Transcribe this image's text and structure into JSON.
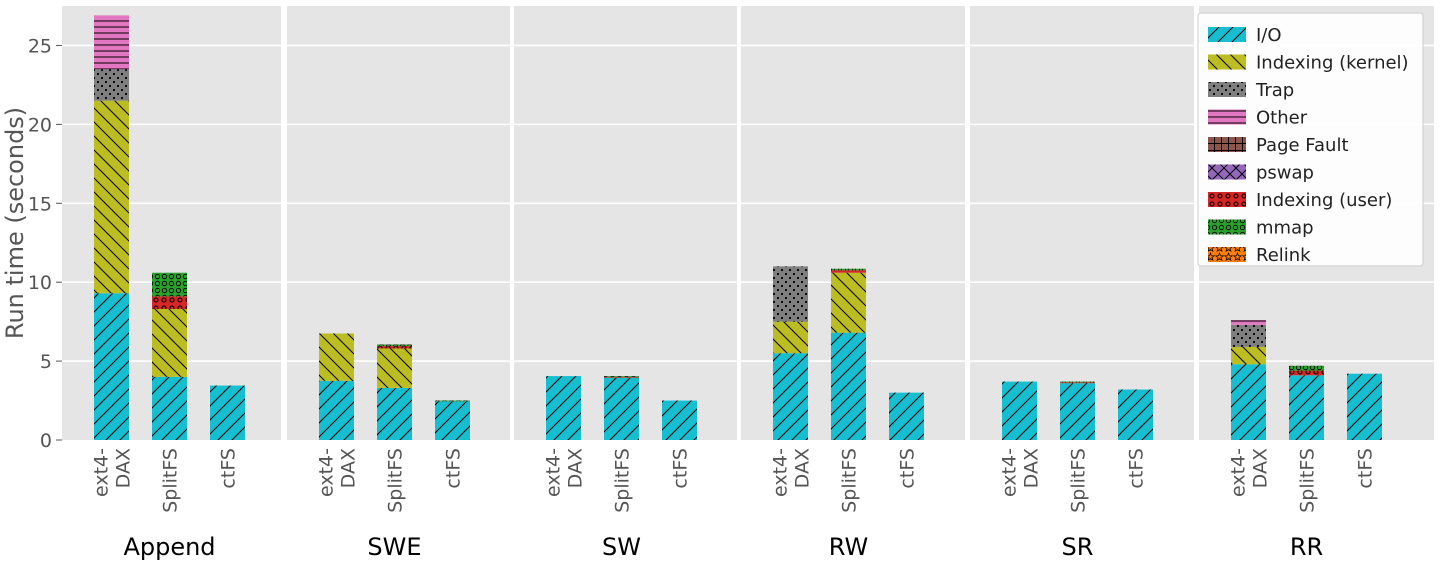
{
  "chart_data": {
    "type": "bar",
    "stacked": true,
    "ylabel": "Run time (seconds)",
    "ylim": [
      0,
      27.5
    ],
    "yticks": [
      0,
      5,
      10,
      15,
      20,
      25
    ],
    "grid": true,
    "legend_position": "top-right",
    "groups": [
      "Append",
      "SWE",
      "SW",
      "RW",
      "SR",
      "RR"
    ],
    "systems": [
      {
        "label_lines": [
          "ext4-",
          "DAX"
        ]
      },
      {
        "label_lines": [
          "SplitFS"
        ]
      },
      {
        "label_lines": [
          "ctFS"
        ]
      }
    ],
    "series": [
      {
        "name": "I/O",
        "color": "#17becf",
        "pattern": "diagonal",
        "values": [
          [
            9.3,
            4.0,
            3.45
          ],
          [
            3.75,
            3.3,
            2.45
          ],
          [
            4.05,
            3.95,
            2.5
          ],
          [
            5.5,
            6.8,
            3.0
          ],
          [
            3.7,
            3.6,
            3.2
          ],
          [
            4.8,
            4.1,
            4.2
          ]
        ]
      },
      {
        "name": "Indexing (kernel)",
        "color": "#bcbd22",
        "pattern": "back-diagonal",
        "values": [
          [
            12.2,
            4.3,
            0
          ],
          [
            3.0,
            2.5,
            0
          ],
          [
            0,
            0,
            0
          ],
          [
            2.0,
            3.8,
            0
          ],
          [
            0,
            0,
            0
          ],
          [
            1.1,
            0,
            0
          ]
        ]
      },
      {
        "name": "Trap",
        "color": "#7f7f7f",
        "pattern": "dots",
        "values": [
          [
            2.0,
            0,
            0
          ],
          [
            0,
            0,
            0
          ],
          [
            0,
            0,
            0
          ],
          [
            3.5,
            0,
            0
          ],
          [
            0,
            0,
            0
          ],
          [
            1.4,
            0,
            0
          ]
        ]
      },
      {
        "name": "Other",
        "color": "#e377c2",
        "pattern": "horizontal",
        "values": [
          [
            3.4,
            0,
            0
          ],
          [
            0,
            0,
            0
          ],
          [
            0,
            0,
            0
          ],
          [
            0,
            0,
            0
          ],
          [
            0,
            0,
            0
          ],
          [
            0.3,
            0,
            0
          ]
        ]
      },
      {
        "name": "Page Fault",
        "color": "#8c564b",
        "pattern": "grid",
        "values": [
          [
            0,
            0,
            0
          ],
          [
            0,
            0,
            0
          ],
          [
            0,
            0,
            0
          ],
          [
            0,
            0,
            0
          ],
          [
            0,
            0,
            0
          ],
          [
            0,
            0,
            0
          ]
        ]
      },
      {
        "name": "pswap",
        "color": "#9467bd",
        "pattern": "crosshatch",
        "values": [
          [
            0,
            0,
            0
          ],
          [
            0,
            0,
            0
          ],
          [
            0,
            0,
            0
          ],
          [
            0,
            0,
            0
          ],
          [
            0,
            0,
            0
          ],
          [
            0,
            0,
            0
          ]
        ]
      },
      {
        "name": "Indexing (user)",
        "color": "#d62728",
        "pattern": "circles",
        "values": [
          [
            0,
            0.8,
            0
          ],
          [
            0,
            0.15,
            0
          ],
          [
            0,
            0.05,
            0
          ],
          [
            0,
            0.15,
            0
          ],
          [
            0,
            0.05,
            0
          ],
          [
            0,
            0.3,
            0
          ]
        ]
      },
      {
        "name": "mmap",
        "color": "#2ca02c",
        "pattern": "small-circles",
        "values": [
          [
            0,
            1.5,
            0
          ],
          [
            0,
            0.1,
            0.05
          ],
          [
            0,
            0.05,
            0
          ],
          [
            0,
            0.1,
            0
          ],
          [
            0,
            0.05,
            0
          ],
          [
            0,
            0.3,
            0
          ]
        ]
      },
      {
        "name": "Relink",
        "color": "#ff7f0e",
        "pattern": "stars",
        "values": [
          [
            0,
            0,
            0
          ],
          [
            0,
            0,
            0
          ],
          [
            0,
            0,
            0
          ],
          [
            0,
            0,
            0
          ],
          [
            0,
            0,
            0
          ],
          [
            0,
            0,
            0
          ]
        ]
      }
    ]
  }
}
